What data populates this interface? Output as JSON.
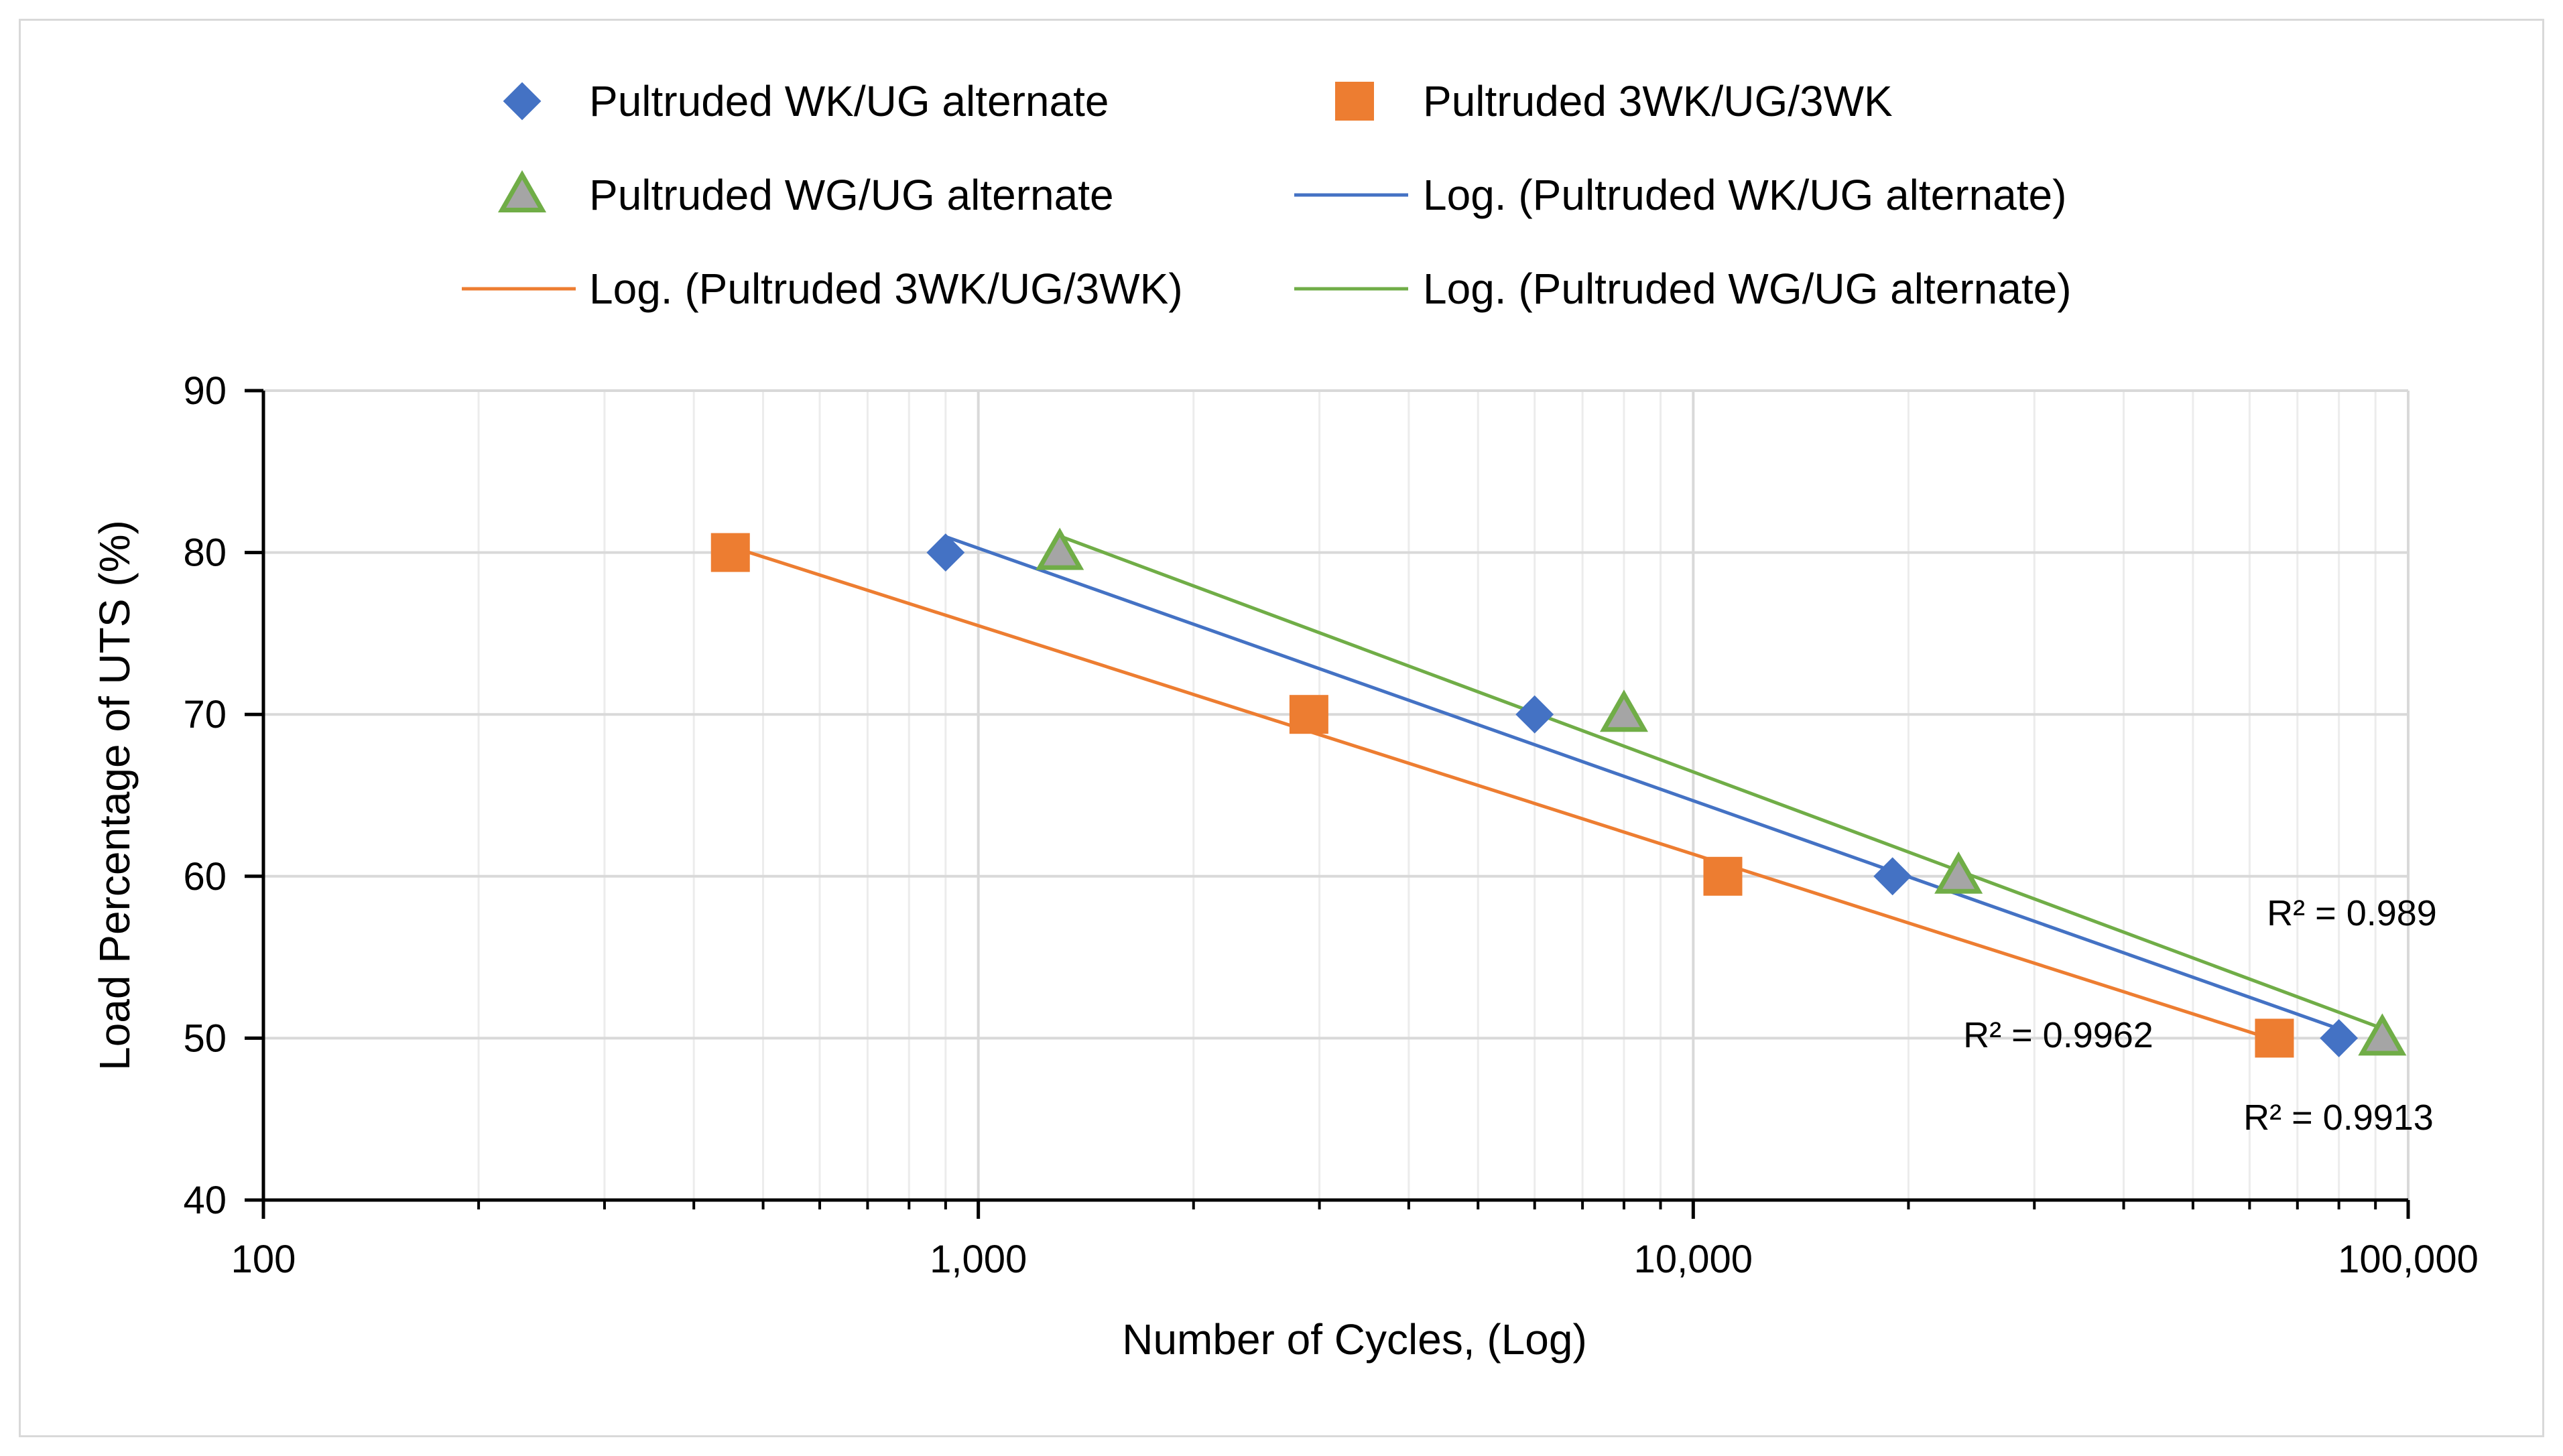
{
  "chart_data": {
    "type": "scatter",
    "title": "",
    "xlabel": "Number of Cycles, (Log)",
    "ylabel": "Load Percentage of UTS (%)",
    "xscale": "log",
    "xlim": [
      100,
      100000
    ],
    "ylim": [
      40,
      90
    ],
    "grid": true,
    "x_ticks": [
      100,
      1000,
      10000,
      100000
    ],
    "x_tick_labels": [
      "100",
      "1,000",
      "10,000",
      "100,000"
    ],
    "y_ticks": [
      40,
      50,
      60,
      70,
      80,
      90
    ],
    "y_tick_labels": [
      "40",
      "50",
      "60",
      "70",
      "80",
      "90"
    ],
    "legend_position": "top",
    "series": [
      {
        "name": "Pultruded WK/UG alternate",
        "marker": "diamond",
        "color": "#4472c4",
        "x": [
          900,
          6000,
          19000,
          80000
        ],
        "y": [
          80,
          70,
          60,
          50
        ],
        "trendline": {
          "name": "Log. (Pultruded WK/UG alternate)",
          "type": "log",
          "color": "#4472c4",
          "r2_label": "R² = 0.989"
        }
      },
      {
        "name": "Pultruded 3WK/UG/3WK",
        "marker": "square",
        "color": "#ed7d31",
        "x": [
          450,
          2900,
          11000,
          65000
        ],
        "y": [
          80,
          70,
          60,
          50
        ],
        "trendline": {
          "name": "Log. (Pultruded 3WK/UG/3WK)",
          "type": "log",
          "color": "#ed7d31",
          "r2_label": "R² = 0.9962"
        }
      },
      {
        "name": "Pultruded WG/UG alternate",
        "marker": "triangle",
        "color": "#a5a5a5",
        "edge_color": "#70ad47",
        "x": [
          1300,
          8000,
          23500,
          92000
        ],
        "y": [
          80,
          70,
          60,
          50
        ],
        "trendline": {
          "name": "Log. (Pultruded WG/UG alternate)",
          "type": "log",
          "color": "#70ad47",
          "r2_label": "R² = 0.9913"
        }
      }
    ]
  }
}
